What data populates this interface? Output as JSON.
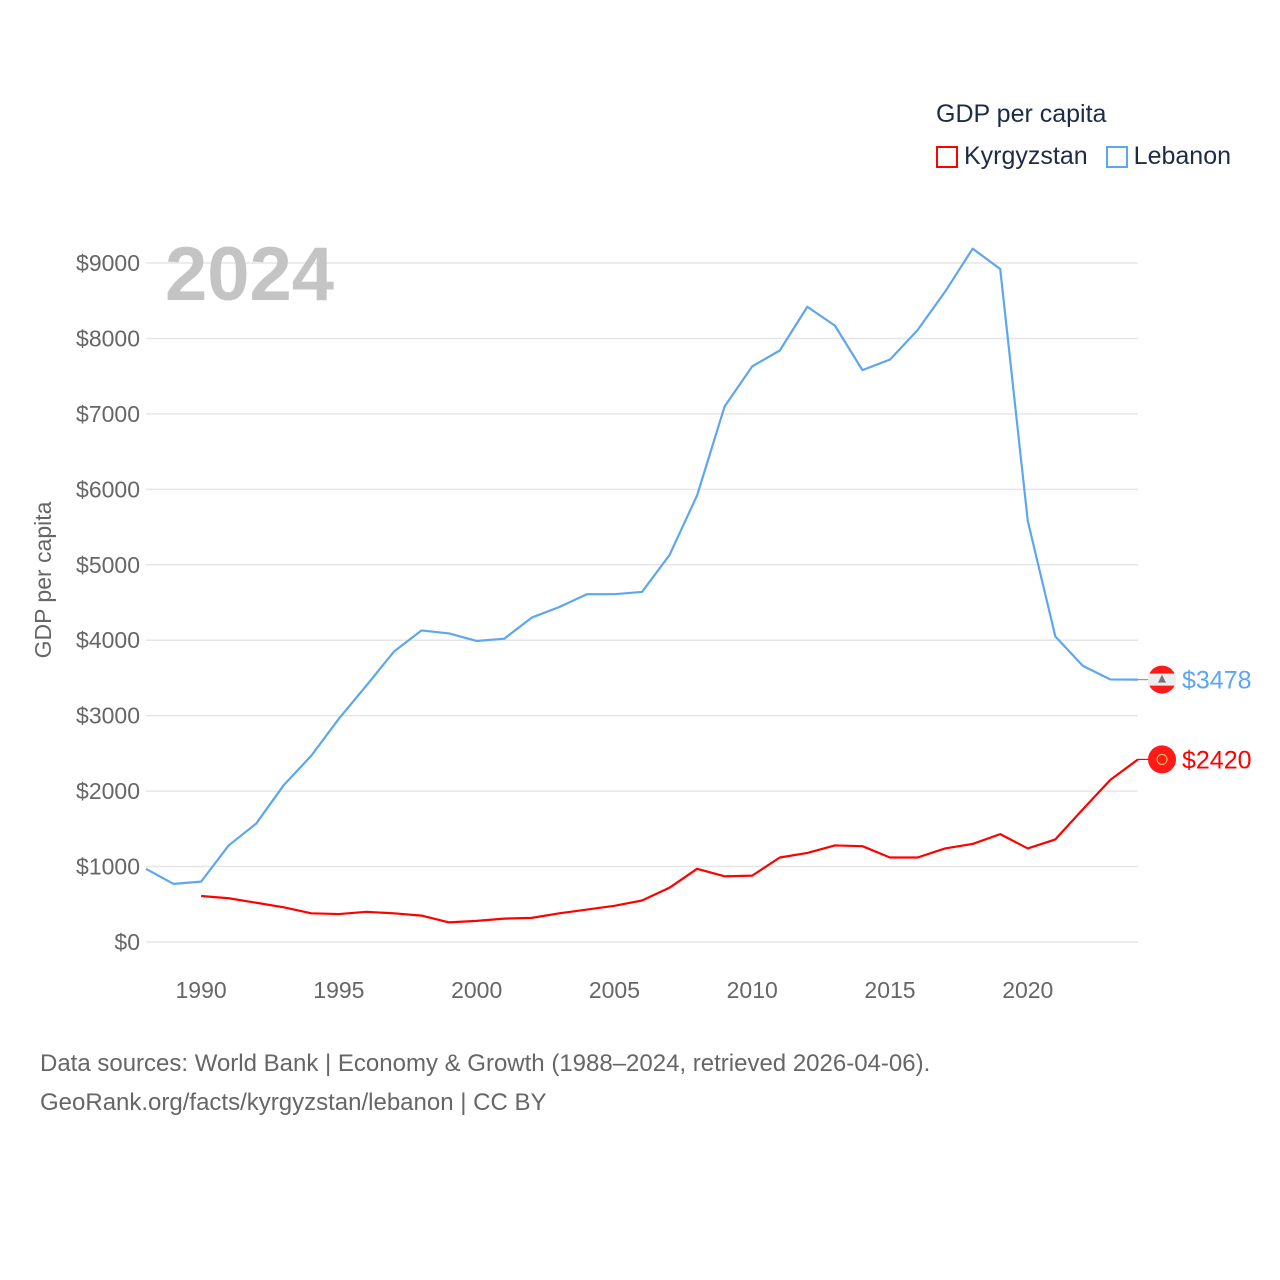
{
  "chart_data": {
    "type": "line",
    "title": "GDP per capita",
    "year_label": "2024",
    "xlabel": "",
    "ylabel": "GDP per capita",
    "xlim": [
      1988,
      2024
    ],
    "ylim": [
      0,
      9000
    ],
    "x_ticks": [
      1990,
      1995,
      2000,
      2005,
      2010,
      2015,
      2020
    ],
    "y_ticks": [
      "$0",
      "$1000",
      "$2000",
      "$3000",
      "$4000",
      "$5000",
      "$6000",
      "$7000",
      "$8000",
      "$9000"
    ],
    "y_tick_values": [
      0,
      1000,
      2000,
      3000,
      4000,
      5000,
      6000,
      7000,
      8000,
      9000
    ],
    "grid": true,
    "legend_position": "top-right",
    "series": [
      {
        "name": "Kyrgyzstan",
        "color": "#ff0000",
        "end_label": "$2420",
        "x": [
          1990,
          1991,
          1992,
          1993,
          1994,
          1995,
          1996,
          1997,
          1998,
          1999,
          2000,
          2001,
          2002,
          2003,
          2004,
          2005,
          2006,
          2007,
          2008,
          2009,
          2010,
          2011,
          2012,
          2013,
          2014,
          2015,
          2016,
          2017,
          2018,
          2019,
          2020,
          2021,
          2022,
          2023,
          2024
        ],
        "values": [
          610,
          580,
          520,
          460,
          380,
          370,
          400,
          380,
          350,
          260,
          280,
          310,
          320,
          380,
          430,
          480,
          550,
          720,
          970,
          870,
          880,
          1120,
          1180,
          1280,
          1270,
          1120,
          1120,
          1240,
          1300,
          1430,
          1240,
          1360,
          1760,
          2150,
          2420
        ]
      },
      {
        "name": "Lebanon",
        "color": "#5ea6ee",
        "end_label": "$3478",
        "x": [
          1988,
          1989,
          1990,
          1991,
          1992,
          1993,
          1994,
          1995,
          1996,
          1997,
          1998,
          1999,
          2000,
          2001,
          2002,
          2003,
          2004,
          2005,
          2006,
          2007,
          2008,
          2009,
          2010,
          2011,
          2012,
          2013,
          2014,
          2015,
          2016,
          2017,
          2018,
          2019,
          2020,
          2021,
          2022,
          2023,
          2024
        ],
        "values": [
          970,
          770,
          800,
          1280,
          1570,
          2080,
          2470,
          2960,
          3400,
          3850,
          4130,
          4090,
          3990,
          4020,
          4300,
          4440,
          4610,
          4610,
          4640,
          5130,
          5920,
          7100,
          7630,
          7840,
          8420,
          8170,
          7580,
          7720,
          8110,
          8620,
          9190,
          8920,
          5580,
          4050,
          3660,
          3480,
          3478
        ]
      }
    ]
  },
  "footer": {
    "line1": "Data sources: World Bank | Economy & Growth (1988–2024, retrieved 2026-04-06).",
    "line2": "GeoRank.org/facts/kyrgyzstan/lebanon | CC BY"
  }
}
